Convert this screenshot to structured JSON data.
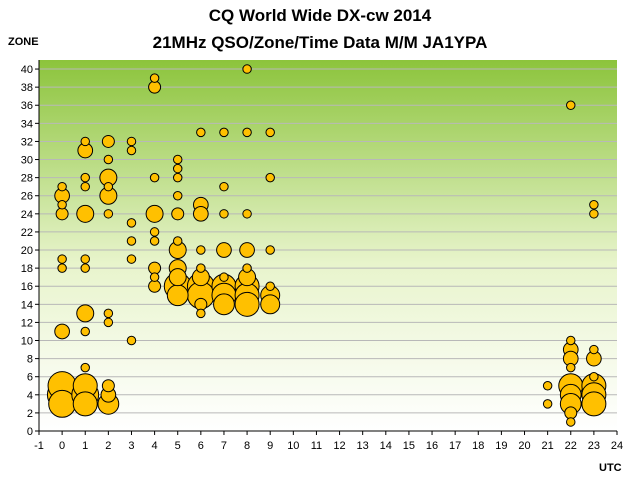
{
  "chart_data": {
    "type": "scatter",
    "bubble": true,
    "title": "CQ World Wide DX-cw 2014",
    "subtitle": "21MHz QSO/Zone/Time Data M/M JA1YPA",
    "ylabel": "ZONE",
    "xlabel": "UTC",
    "xlim": [
      -1,
      24
    ],
    "ylim": [
      0,
      41
    ],
    "xticks": [
      -1,
      0,
      1,
      2,
      3,
      4,
      5,
      6,
      7,
      8,
      9,
      10,
      11,
      12,
      13,
      14,
      15,
      16,
      17,
      18,
      19,
      20,
      21,
      22,
      23,
      24
    ],
    "yticks": [
      0,
      2,
      4,
      6,
      8,
      10,
      12,
      14,
      16,
      18,
      20,
      22,
      24,
      26,
      28,
      30,
      32,
      34,
      36,
      38,
      40
    ],
    "grid": "horizontal",
    "background": "green-gradient",
    "marker_color": "#FFC000",
    "marker_edge": "#000000",
    "points": [
      {
        "x": 0,
        "y": 27,
        "size": 1
      },
      {
        "x": 0,
        "y": 26,
        "size": 3
      },
      {
        "x": 0,
        "y": 25,
        "size": 1
      },
      {
        "x": 0,
        "y": 24,
        "size": 2
      },
      {
        "x": 0,
        "y": 19,
        "size": 1
      },
      {
        "x": 0,
        "y": 18,
        "size": 1
      },
      {
        "x": 0,
        "y": 11,
        "size": 3
      },
      {
        "x": 0,
        "y": 5,
        "size": 11
      },
      {
        "x": 0,
        "y": 4,
        "size": 12
      },
      {
        "x": 0,
        "y": 3,
        "size": 10
      },
      {
        "x": 1,
        "y": 32,
        "size": 1
      },
      {
        "x": 1,
        "y": 31,
        "size": 3
      },
      {
        "x": 1,
        "y": 28,
        "size": 1
      },
      {
        "x": 1,
        "y": 27,
        "size": 1
      },
      {
        "x": 1,
        "y": 24,
        "size": 4
      },
      {
        "x": 1,
        "y": 19,
        "size": 1
      },
      {
        "x": 1,
        "y": 18,
        "size": 1
      },
      {
        "x": 1,
        "y": 13,
        "size": 4
      },
      {
        "x": 1,
        "y": 11,
        "size": 1
      },
      {
        "x": 1,
        "y": 7,
        "size": 1
      },
      {
        "x": 1,
        "y": 5,
        "size": 8
      },
      {
        "x": 1,
        "y": 4,
        "size": 10
      },
      {
        "x": 1,
        "y": 3,
        "size": 8
      },
      {
        "x": 2,
        "y": 32,
        "size": 2
      },
      {
        "x": 2,
        "y": 30,
        "size": 1
      },
      {
        "x": 2,
        "y": 28,
        "size": 4
      },
      {
        "x": 2,
        "y": 27,
        "size": 1
      },
      {
        "x": 2,
        "y": 26,
        "size": 4
      },
      {
        "x": 2,
        "y": 24,
        "size": 1
      },
      {
        "x": 2,
        "y": 13,
        "size": 1
      },
      {
        "x": 2,
        "y": 12,
        "size": 1
      },
      {
        "x": 2,
        "y": 5,
        "size": 2
      },
      {
        "x": 2,
        "y": 4,
        "size": 3
      },
      {
        "x": 2,
        "y": 3,
        "size": 6
      },
      {
        "x": 3,
        "y": 32,
        "size": 1
      },
      {
        "x": 3,
        "y": 31,
        "size": 1
      },
      {
        "x": 3,
        "y": 23,
        "size": 1
      },
      {
        "x": 3,
        "y": 21,
        "size": 1
      },
      {
        "x": 3,
        "y": 19,
        "size": 1
      },
      {
        "x": 3,
        "y": 10,
        "size": 1
      },
      {
        "x": 4,
        "y": 39,
        "size": 1
      },
      {
        "x": 4,
        "y": 38,
        "size": 2
      },
      {
        "x": 4,
        "y": 28,
        "size": 1
      },
      {
        "x": 4,
        "y": 24,
        "size": 4
      },
      {
        "x": 4,
        "y": 22,
        "size": 1
      },
      {
        "x": 4,
        "y": 21,
        "size": 1
      },
      {
        "x": 4,
        "y": 18,
        "size": 2
      },
      {
        "x": 4,
        "y": 17,
        "size": 1
      },
      {
        "x": 4,
        "y": 16,
        "size": 2
      },
      {
        "x": 5,
        "y": 30,
        "size": 1
      },
      {
        "x": 5,
        "y": 29,
        "size": 1
      },
      {
        "x": 5,
        "y": 28,
        "size": 1
      },
      {
        "x": 5,
        "y": 26,
        "size": 1
      },
      {
        "x": 5,
        "y": 24,
        "size": 2
      },
      {
        "x": 5,
        "y": 21,
        "size": 1
      },
      {
        "x": 5,
        "y": 20,
        "size": 4
      },
      {
        "x": 5,
        "y": 18,
        "size": 4
      },
      {
        "x": 5,
        "y": 17,
        "size": 4
      },
      {
        "x": 5,
        "y": 16,
        "size": 10
      },
      {
        "x": 5,
        "y": 15,
        "size": 6
      },
      {
        "x": 6,
        "y": 33,
        "size": 1
      },
      {
        "x": 6,
        "y": 25,
        "size": 3
      },
      {
        "x": 6,
        "y": 24,
        "size": 3
      },
      {
        "x": 6,
        "y": 20,
        "size": 1
      },
      {
        "x": 6,
        "y": 18,
        "size": 1
      },
      {
        "x": 6,
        "y": 17,
        "size": 4
      },
      {
        "x": 6,
        "y": 16,
        "size": 10
      },
      {
        "x": 6,
        "y": 15,
        "size": 10
      },
      {
        "x": 6,
        "y": 14,
        "size": 2
      },
      {
        "x": 6,
        "y": 13,
        "size": 1
      },
      {
        "x": 7,
        "y": 33,
        "size": 1
      },
      {
        "x": 7,
        "y": 27,
        "size": 1
      },
      {
        "x": 7,
        "y": 24,
        "size": 1
      },
      {
        "x": 7,
        "y": 20,
        "size": 3
      },
      {
        "x": 7,
        "y": 17,
        "size": 1
      },
      {
        "x": 7,
        "y": 16,
        "size": 8
      },
      {
        "x": 7,
        "y": 15,
        "size": 8
      },
      {
        "x": 7,
        "y": 14,
        "size": 6
      },
      {
        "x": 8,
        "y": 40,
        "size": 1
      },
      {
        "x": 8,
        "y": 33,
        "size": 1
      },
      {
        "x": 8,
        "y": 24,
        "size": 1
      },
      {
        "x": 8,
        "y": 20,
        "size": 3
      },
      {
        "x": 8,
        "y": 18,
        "size": 1
      },
      {
        "x": 8,
        "y": 17,
        "size": 4
      },
      {
        "x": 8,
        "y": 16,
        "size": 8
      },
      {
        "x": 8,
        "y": 15,
        "size": 8
      },
      {
        "x": 8,
        "y": 14,
        "size": 8
      },
      {
        "x": 9,
        "y": 33,
        "size": 1
      },
      {
        "x": 9,
        "y": 28,
        "size": 1
      },
      {
        "x": 9,
        "y": 20,
        "size": 1
      },
      {
        "x": 9,
        "y": 16,
        "size": 1
      },
      {
        "x": 9,
        "y": 15,
        "size": 5
      },
      {
        "x": 9,
        "y": 14,
        "size": 5
      },
      {
        "x": 21,
        "y": 5,
        "size": 1
      },
      {
        "x": 21,
        "y": 3,
        "size": 1
      },
      {
        "x": 22,
        "y": 36,
        "size": 1
      },
      {
        "x": 22,
        "y": 10,
        "size": 1
      },
      {
        "x": 22,
        "y": 9,
        "size": 3
      },
      {
        "x": 22,
        "y": 8,
        "size": 3
      },
      {
        "x": 22,
        "y": 7,
        "size": 1
      },
      {
        "x": 22,
        "y": 5,
        "size": 8
      },
      {
        "x": 22,
        "y": 4,
        "size": 6
      },
      {
        "x": 22,
        "y": 3,
        "size": 6
      },
      {
        "x": 22,
        "y": 2,
        "size": 2
      },
      {
        "x": 22,
        "y": 1,
        "size": 1
      },
      {
        "x": 23,
        "y": 25,
        "size": 1
      },
      {
        "x": 23,
        "y": 24,
        "size": 1
      },
      {
        "x": 23,
        "y": 9,
        "size": 1
      },
      {
        "x": 23,
        "y": 8,
        "size": 3
      },
      {
        "x": 23,
        "y": 6,
        "size": 1
      },
      {
        "x": 23,
        "y": 5,
        "size": 8
      },
      {
        "x": 23,
        "y": 4,
        "size": 8
      },
      {
        "x": 23,
        "y": 3,
        "size": 8
      }
    ]
  }
}
